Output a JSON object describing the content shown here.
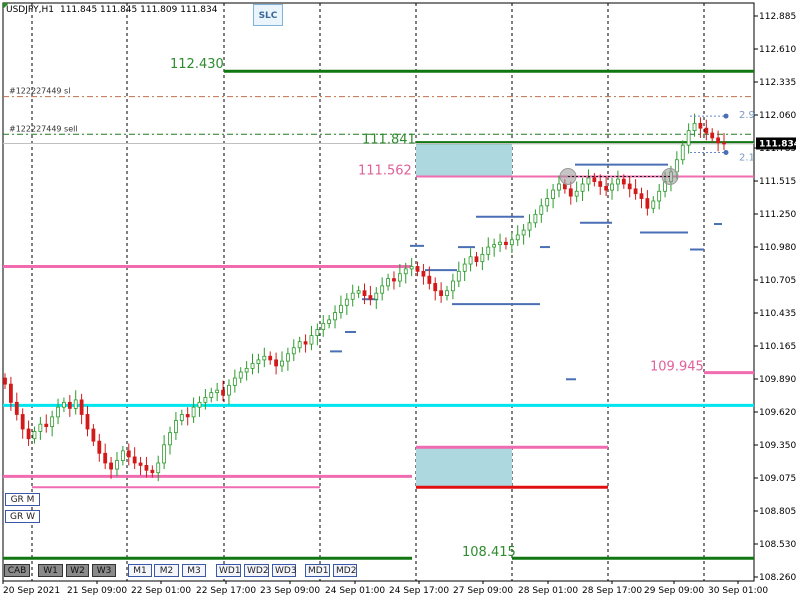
{
  "header": {
    "symbol": "USDJPY,H1",
    "ohlc": "111.845 111.845 111.809 111.834"
  },
  "slc_label": "SLC",
  "orders": [
    {
      "label": "#122227449 sl",
      "price": 112.22,
      "color": "#c0704a"
    },
    {
      "label": "#122227449 sell",
      "price": 111.91,
      "color": "#207a20"
    }
  ],
  "current_price": "111.834",
  "level_labels": [
    {
      "text": "112.430",
      "color": "#2e8b2e"
    },
    {
      "text": "111.841",
      "color": "#2e8b2e"
    },
    {
      "text": "111.562",
      "color": "#e0609a"
    },
    {
      "text": "109.945",
      "color": "#e0609a"
    },
    {
      "text": "108.415",
      "color": "#2e8b2e"
    }
  ],
  "side_labels": [
    "2.9",
    "2.1"
  ],
  "buttons": {
    "row1": [
      "CAB",
      "W1",
      "W2",
      "W3",
      "M1",
      "M2",
      "M3",
      "WD1",
      "WD2",
      "WD3",
      "MD1",
      "MD2"
    ],
    "gr": [
      "GR M",
      "GR W"
    ]
  },
  "colors": {
    "green_level": "#117711",
    "pink_level": "#f06bb0",
    "cyan_level": "#00e5ee",
    "red_level": "#e01010",
    "zone_fill": "#add8e0",
    "blue_seg": "#4a6fb5",
    "bull_candle": "#2a9a2a",
    "bear_candle": "#d21a1a"
  },
  "chart_data": {
    "type": "candlestick",
    "y_axis_ticks": [
      "112.885",
      "112.610",
      "112.335",
      "112.060",
      "111.785",
      "111.515",
      "111.250",
      "110.980",
      "110.705",
      "110.435",
      "110.165",
      "109.890",
      "109.620",
      "109.350",
      "109.075",
      "108.805",
      "108.530",
      "108.260"
    ],
    "x_axis_ticks": [
      "20 Sep 2021",
      "21 Sep 09:00",
      "22 Sep 01:00",
      "22 Sep 17:00",
      "23 Sep 09:00",
      "24 Sep 01:00",
      "24 Sep 17:00",
      "27 Sep 09:00",
      "28 Sep 01:00",
      "28 Sep 17:00",
      "29 Sep 09:00",
      "30 Sep 01:00"
    ],
    "ylim": [
      108.26,
      112.885
    ],
    "levels": [
      {
        "price": 112.43,
        "style": "green"
      },
      {
        "price": 111.841,
        "style": "green"
      },
      {
        "price": 111.562,
        "style": "pink"
      },
      {
        "price": 110.82,
        "style": "pink"
      },
      {
        "price": 109.945,
        "style": "pink"
      },
      {
        "price": 109.675,
        "style": "cyan"
      },
      {
        "price": 109.33,
        "style": "pink"
      },
      {
        "price": 109.09,
        "style": "pink"
      },
      {
        "price": 109.0,
        "style": "pink"
      },
      {
        "price": 108.42,
        "style": "green"
      },
      {
        "price": 108.415,
        "style": "green"
      },
      {
        "price": 109.0,
        "style": "red"
      }
    ],
    "zones": [
      {
        "price_top": 111.841,
        "price_bottom": 111.562
      },
      {
        "price_top": 109.33,
        "price_bottom": 109.0
      }
    ],
    "closes": [
      109.85,
      109.7,
      109.6,
      109.48,
      109.4,
      109.46,
      109.52,
      109.5,
      109.58,
      109.66,
      109.7,
      109.65,
      109.72,
      109.6,
      109.48,
      109.38,
      109.28,
      109.2,
      109.15,
      109.22,
      109.3,
      109.25,
      109.2,
      109.18,
      109.14,
      109.12,
      109.2,
      109.35,
      109.45,
      109.55,
      109.6,
      109.58,
      109.66,
      109.7,
      109.74,
      109.78,
      109.8,
      109.76,
      109.84,
      109.9,
      109.95,
      109.98,
      110.02,
      110.05,
      110.08,
      110.05,
      110.0,
      110.04,
      110.1,
      110.15,
      110.2,
      110.18,
      110.25,
      110.3,
      110.35,
      110.38,
      110.44,
      110.5,
      110.55,
      110.6,
      110.62,
      110.58,
      110.55,
      110.6,
      110.66,
      110.72,
      110.7,
      110.76,
      110.8,
      110.82,
      110.78,
      110.74,
      110.68,
      110.62,
      110.58,
      110.62,
      110.7,
      110.78,
      110.84,
      110.9,
      110.86,
      110.92,
      110.98,
      111.0,
      111.02,
      111.0,
      111.04,
      111.08,
      111.12,
      111.18,
      111.25,
      111.32,
      111.38,
      111.45,
      111.5,
      111.46,
      111.4,
      111.44,
      111.5,
      111.55,
      111.52,
      111.48,
      111.45,
      111.5,
      111.54,
      111.5,
      111.46,
      111.42,
      111.38,
      111.3,
      111.36,
      111.44,
      111.52,
      111.6,
      111.7,
      111.82,
      111.94,
      112.0,
      111.96,
      111.92,
      111.88,
      111.84,
      111.83
    ]
  }
}
